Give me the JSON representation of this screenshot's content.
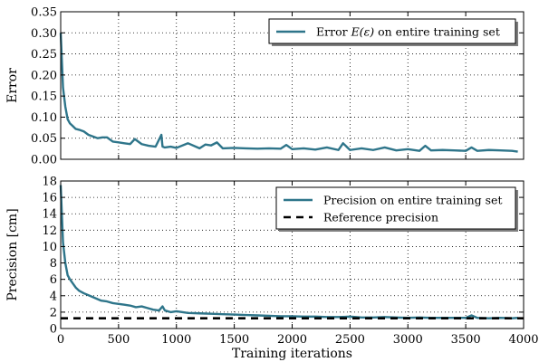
{
  "colors": {
    "series": "#2e758a",
    "reference": "#000000",
    "grid": "#000000",
    "background": "#ffffff",
    "legend_shadow": "#7f7f7f"
  },
  "chart_data": [
    {
      "type": "line",
      "title": "",
      "xlabel": "",
      "ylabel": "Error",
      "xlim": [
        0,
        4000
      ],
      "ylim": [
        0,
        0.35
      ],
      "x_ticks": [
        0,
        500,
        1000,
        1500,
        2000,
        2500,
        3000,
        3500,
        4000
      ],
      "y_ticks": [
        0.0,
        0.05,
        0.1,
        0.15,
        0.2,
        0.25,
        0.3,
        0.35
      ],
      "y_tick_labels": [
        "0.00",
        "0.05",
        "0.10",
        "0.15",
        "0.20",
        "0.25",
        "0.30",
        "0.35"
      ],
      "x_tick_labels_visible": false,
      "grid": true,
      "legend_position": "top-right",
      "series": [
        {
          "name": "Error E(ε) on entire training set",
          "legend_prefix": "Error ",
          "legend_math": "E(ε)",
          "legend_suffix": " on entire training set",
          "style": "solid",
          "x": [
            0,
            20,
            40,
            60,
            80,
            100,
            130,
            160,
            200,
            240,
            280,
            320,
            360,
            400,
            450,
            500,
            550,
            600,
            640,
            700,
            760,
            820,
            870,
            880,
            900,
            950,
            1000,
            1100,
            1200,
            1250,
            1300,
            1350,
            1400,
            1500,
            1600,
            1700,
            1800,
            1900,
            1950,
            2000,
            2100,
            2200,
            2300,
            2400,
            2440,
            2500,
            2600,
            2700,
            2800,
            2900,
            3000,
            3100,
            3150,
            3200,
            3300,
            3400,
            3500,
            3550,
            3600,
            3700,
            3800,
            3900,
            3950
          ],
          "values": [
            0.3,
            0.17,
            0.125,
            0.095,
            0.085,
            0.08,
            0.072,
            0.07,
            0.066,
            0.058,
            0.054,
            0.05,
            0.052,
            0.052,
            0.042,
            0.04,
            0.038,
            0.036,
            0.048,
            0.036,
            0.032,
            0.03,
            0.058,
            0.03,
            0.028,
            0.03,
            0.027,
            0.038,
            0.026,
            0.035,
            0.033,
            0.04,
            0.026,
            0.027,
            0.026,
            0.025,
            0.026,
            0.025,
            0.034,
            0.024,
            0.026,
            0.023,
            0.028,
            0.022,
            0.038,
            0.022,
            0.026,
            0.022,
            0.028,
            0.021,
            0.024,
            0.02,
            0.032,
            0.021,
            0.022,
            0.021,
            0.02,
            0.028,
            0.02,
            0.022,
            0.021,
            0.02,
            0.018
          ]
        }
      ]
    },
    {
      "type": "line",
      "title": "",
      "xlabel": "Training iterations",
      "ylabel": "Precision [cm]",
      "xlim": [
        0,
        4000
      ],
      "ylim": [
        0,
        18
      ],
      "x_ticks": [
        0,
        500,
        1000,
        1500,
        2000,
        2500,
        3000,
        3500,
        4000
      ],
      "x_tick_labels": [
        "0",
        "500",
        "1000",
        "1500",
        "2000",
        "2500",
        "3000",
        "3500",
        "4000"
      ],
      "y_ticks": [
        0,
        2,
        4,
        6,
        8,
        10,
        12,
        14,
        16,
        18
      ],
      "y_tick_labels": [
        "0",
        "2",
        "4",
        "6",
        "8",
        "10",
        "12",
        "14",
        "16",
        "18"
      ],
      "grid": true,
      "legend_position": "top-right",
      "series": [
        {
          "name": "Precision on entire training set",
          "style": "solid",
          "x": [
            0,
            20,
            40,
            60,
            80,
            100,
            130,
            160,
            200,
            250,
            300,
            350,
            400,
            450,
            500,
            550,
            600,
            650,
            700,
            750,
            800,
            850,
            880,
            900,
            950,
            1000,
            1100,
            1200,
            1300,
            1400,
            1500,
            1600,
            1700,
            1800,
            1900,
            2000,
            2100,
            2200,
            2300,
            2400,
            2500,
            2600,
            2700,
            2800,
            2900,
            3000,
            3100,
            3200,
            3300,
            3400,
            3500,
            3550,
            3600,
            3700,
            3800,
            3900,
            3950
          ],
          "values": [
            17.5,
            10.5,
            8.0,
            6.5,
            6.0,
            5.6,
            5.0,
            4.6,
            4.3,
            4.0,
            3.7,
            3.4,
            3.3,
            3.1,
            3.0,
            2.9,
            2.8,
            2.6,
            2.7,
            2.5,
            2.3,
            2.2,
            2.7,
            2.2,
            2.0,
            2.1,
            1.9,
            1.85,
            1.8,
            1.75,
            1.7,
            1.65,
            1.6,
            1.55,
            1.5,
            1.5,
            1.45,
            1.45,
            1.4,
            1.4,
            1.45,
            1.35,
            1.35,
            1.4,
            1.35,
            1.3,
            1.35,
            1.3,
            1.3,
            1.3,
            1.3,
            1.6,
            1.3,
            1.25,
            1.3,
            1.25,
            1.3
          ]
        },
        {
          "name": "Reference precision",
          "style": "dashed",
          "x": [
            0,
            4000
          ],
          "values": [
            1.25,
            1.25
          ]
        }
      ]
    }
  ]
}
